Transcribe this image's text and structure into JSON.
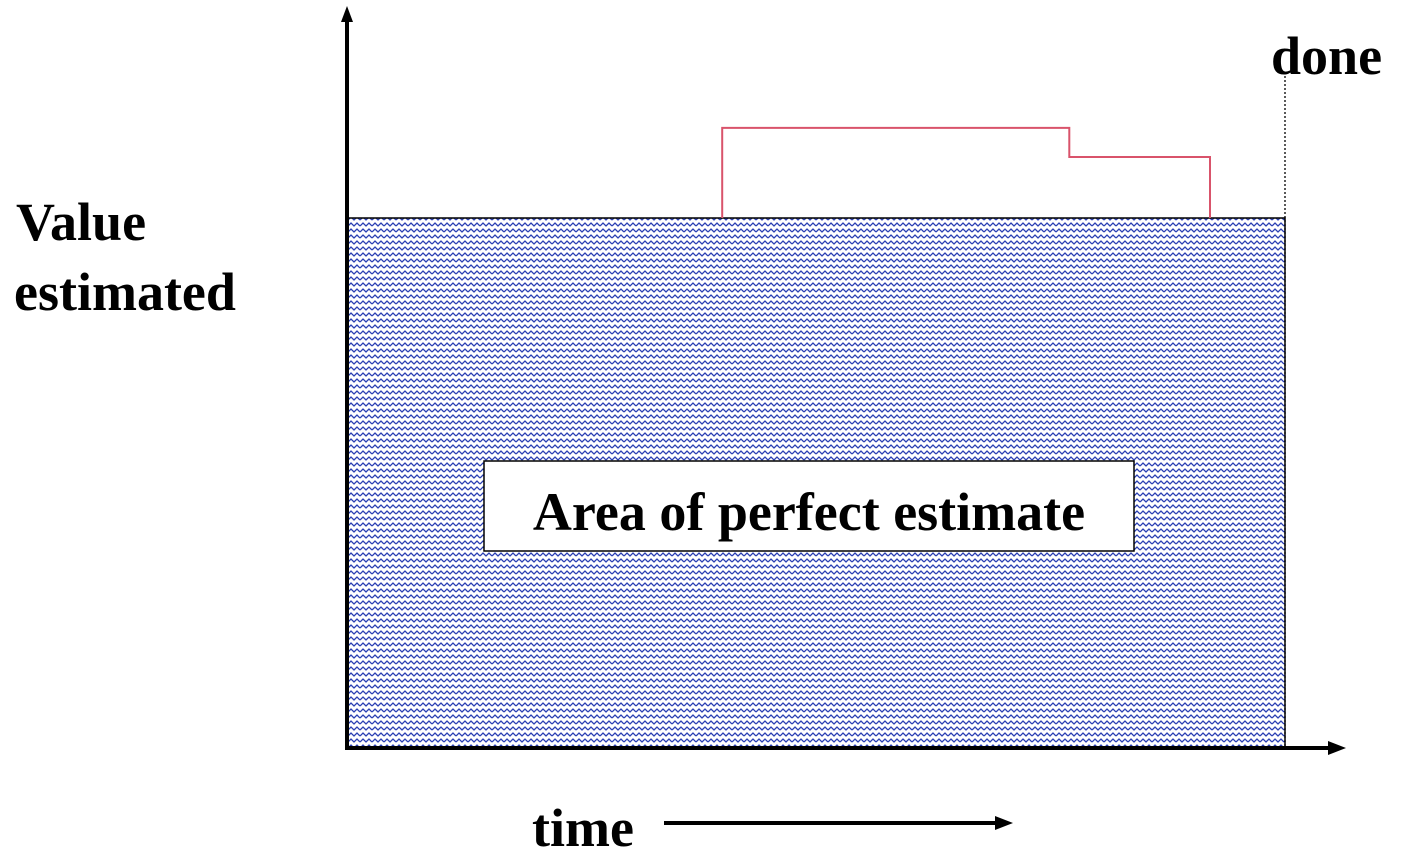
{
  "labels": {
    "y_axis_line1": "Value",
    "y_axis_line2": "estimated",
    "x_axis": "time",
    "done": "done",
    "area": "Area of perfect estimate"
  },
  "colors": {
    "fill_pattern": "#2a3fb3",
    "estimate_line": "#d9536b",
    "axis": "#000000",
    "background": "#ffffff"
  },
  "chart_data": {
    "type": "area",
    "regions": [
      {
        "name": "Area of perfect estimate",
        "value": 1.0,
        "from": 0.0,
        "to": 1.0
      }
    ],
    "estimate_steps": [
      {
        "from": 0.0,
        "to": 0.4,
        "value": 1.0
      },
      {
        "from": 0.4,
        "to": 0.77,
        "value": 1.17
      },
      {
        "from": 0.77,
        "to": 0.92,
        "value": 1.115
      },
      {
        "from": 0.92,
        "to": 1.0,
        "value": 1.0
      }
    ],
    "done_marker": 1.0,
    "xlabel": "time",
    "ylabel": "Value estimated"
  }
}
